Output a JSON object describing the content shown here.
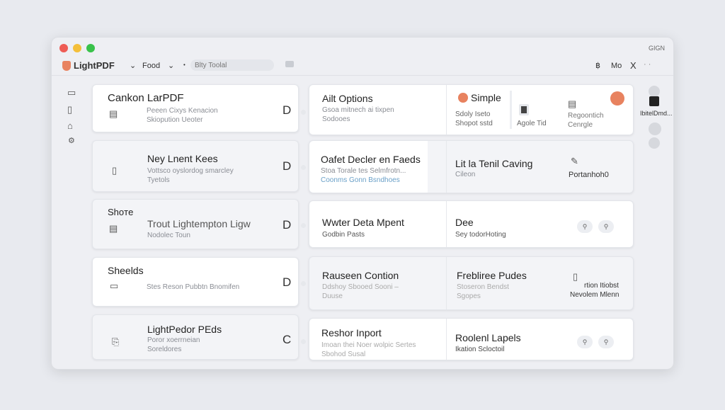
{
  "window": {
    "title_right": "GIGN",
    "colors": {
      "close": "#ee5c55",
      "minimize": "#f4bf3a",
      "maximize": "#39c24a",
      "accent": "#e8825f"
    }
  },
  "toolbar": {
    "app_name": "LightPDF",
    "menu1": "Food",
    "search_placeholder": "Blty Toolal",
    "right_label": "Mo",
    "close": "X"
  },
  "sidebar": {
    "icons": [
      "layout-icon",
      "document-icon",
      "bell-icon",
      "gear-icon"
    ]
  },
  "left_cards": [
    {
      "title": "Cankon LarPDF",
      "lines": [
        "Peeen Cixys Kenacion",
        "Skiopution Ueoter"
      ],
      "badge": "D"
    },
    {
      "title": "Ney Lnent Kees",
      "lines": [
        "Vottsco oyslordog smarcley",
        "Tyetols"
      ],
      "badge": "D"
    },
    {
      "header": "Shoтe",
      "title": "Trout Lightempton Ligw",
      "lines": [
        "Nodolec Toun"
      ],
      "badge": "D"
    },
    {
      "title": "Sheelds",
      "lines": [
        "Stes Reson Pubbtn Bnomifen"
      ],
      "badge": "D"
    },
    {
      "title": "LightPedor PEds",
      "lines": [
        "Poror xoerrneian",
        "Soreldores"
      ],
      "badge": "C"
    }
  ],
  "right_cards": [
    {
      "title": "Ailt Options",
      "lines": [
        "Gsoa mitnech ai tixpen",
        "Sodooes"
      ],
      "col2_title": "Simple",
      "col2_lines": [
        "Sdoly Iseto",
        "Shopot sstd"
      ],
      "item_a": "Agole Tid",
      "item_b": [
        "Regoontich",
        "Cenrgle"
      ]
    },
    {
      "title": "Oafet Decler en Faeds",
      "lines": [
        "Stoa Torale tes Selmfrotn...",
        "Coonms Gonn Bsndhoes"
      ],
      "col2_title": "Lit la Tenil Caving",
      "col2_lines": [
        "Cileon"
      ],
      "item_b": [
        "Portanhoh0"
      ]
    },
    {
      "title": "Wwter Deta Mpent",
      "lines": [
        "Godbin Pasts"
      ],
      "col2_title": "Dee",
      "col2_lines": [
        "Sey todorHoting"
      ]
    },
    {
      "title": "Rauseen Contion",
      "lines": [
        "Ddshoy Sbooed Sooni –",
        "Duuse"
      ],
      "col2_title": "Frebliree Pudes",
      "col2_lines": [
        "Stoseron Bendst",
        "Sgopes"
      ],
      "item_b": [
        "rtion Itiobst",
        "Nevolem Mlenn"
      ]
    },
    {
      "title": "Reshor Inport",
      "lines": [
        "Imoan thei Noer wolpic Sertes",
        "Sbohod Susal"
      ],
      "col2_title": "Roolenl Lapels",
      "col2_lines": [
        "Ikation Scloctoil"
      ]
    }
  ],
  "right_rail": {
    "label": "IbitelDmd..."
  }
}
